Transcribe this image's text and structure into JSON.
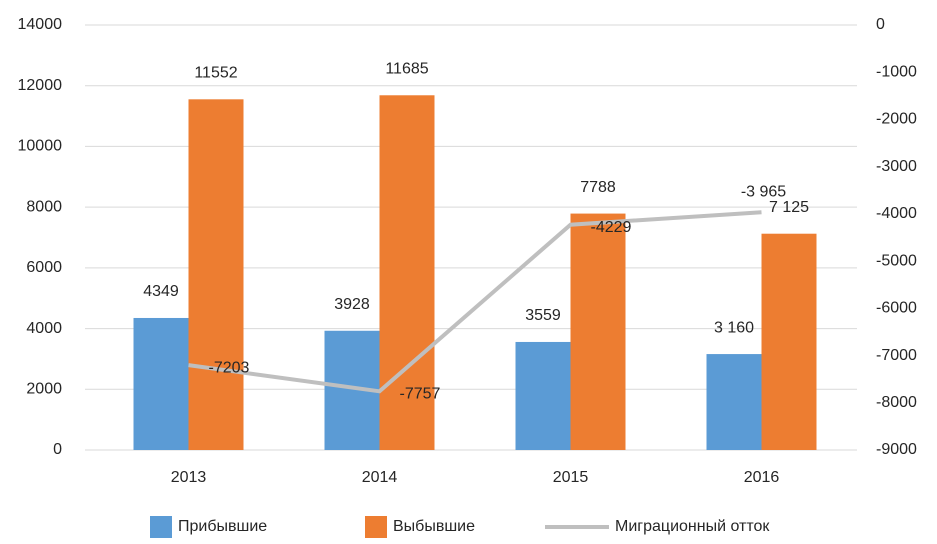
{
  "chart_data": {
    "type": "bar",
    "categories": [
      "2013",
      "2014",
      "2015",
      "2016"
    ],
    "series": [
      {
        "name": "Прибывшие",
        "color": "#5b9bd5",
        "values": [
          4349,
          3928,
          3559,
          3160
        ],
        "value_labels": [
          "4349",
          "3928",
          "3559",
          "3 160"
        ]
      },
      {
        "name": "Выбывшие",
        "color": "#ed7d31",
        "values": [
          11552,
          11685,
          7788,
          7125
        ],
        "value_labels": [
          "11552",
          "11685",
          "7788",
          "7 125"
        ]
      },
      {
        "name": "Миграционный отток",
        "type": "line",
        "axis": "y2",
        "color": "#bfbfbf",
        "values": [
          -7203,
          -7757,
          -4229,
          -3965
        ],
        "value_labels": [
          "-7203",
          "-7757",
          "-4229",
          "-3 965"
        ]
      }
    ],
    "ylim": [
      0,
      14000
    ],
    "yticks": [
      0,
      2000,
      4000,
      6000,
      8000,
      10000,
      12000,
      14000
    ],
    "y2lim": [
      -9000,
      0
    ],
    "y2ticks": [
      -9000,
      -8000,
      -7000,
      -6000,
      -5000,
      -4000,
      -3000,
      -2000,
      -1000,
      0
    ],
    "grid": true,
    "legend": "bottom"
  }
}
